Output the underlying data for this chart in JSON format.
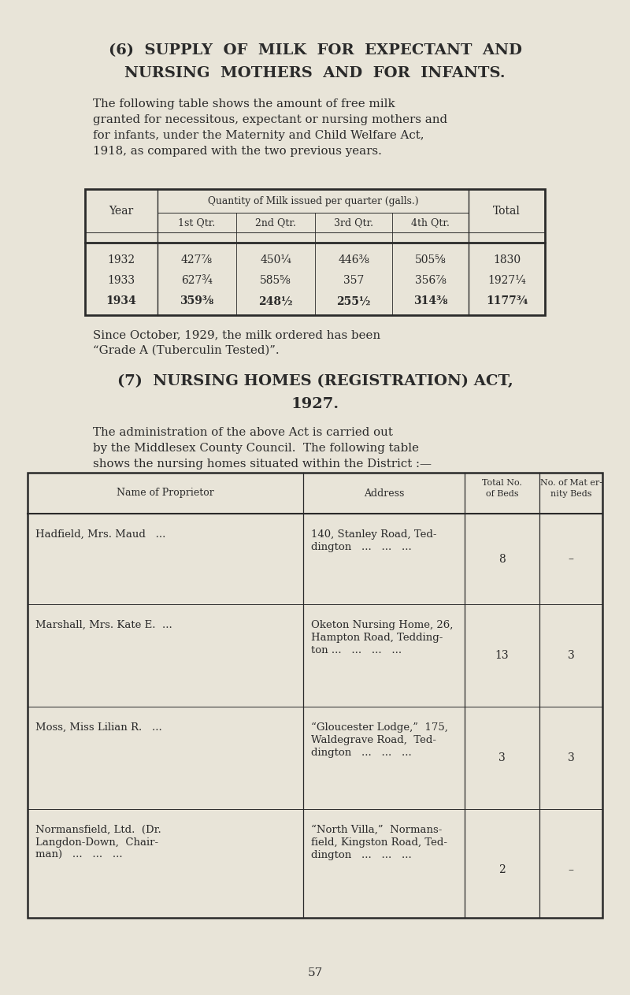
{
  "bg_color": "#e8e4d8",
  "text_color": "#2a2a2a",
  "page_number": "57",
  "section6_title_line1": "(6)  SUPPLY  OF  MILK  FOR  EXPECTANT  AND",
  "section6_title_line2": "NURSING  MOTHERS  AND  FOR  INFANTS.",
  "section6_para_lines": [
    "The following table shows the amount of free milk",
    "granted for necessitous, expectant or nursing mothers and",
    "for infants, under the Maternity and Child Welfare Act,",
    "1918, as compared with the two previous years."
  ],
  "table1_header_col2": "Quantity of Milk issued per quarter (galls.)",
  "table1_subheaders": [
    "1st Qtr.",
    "2nd Qtr.",
    "3rd Qtr.",
    "4th Qtr."
  ],
  "table1_rows": [
    [
      "1932",
      "427⅞",
      "450¼",
      "446⅜",
      "505⅝",
      "1830"
    ],
    [
      "1933",
      "627¾",
      "585⅝",
      "357",
      "356⅞",
      "1927¼"
    ],
    [
      "1934",
      "359⅜",
      "248½",
      "255½",
      "314⅜",
      "1177¾"
    ]
  ],
  "table1_bold_row": 2,
  "section6_note_lines": [
    "Since October, 1929, the milk ordered has been",
    "“Grade A (Tuberculin Tested)”."
  ],
  "section7_title_line1": "(7)  NURSING HOMES (REGISTRATION) ACT,",
  "section7_title_line2": "1927.",
  "section7_para_lines": [
    "The administration of the above Act is carried out",
    "by the Middlesex County Council.  The following table",
    "shows the nursing homes situated within the District :—"
  ],
  "table2_header_cols": [
    "Name of Proprietor",
    "Address",
    "Total No.\nof Beds",
    "No. of Mat er-\nnity Beds"
  ],
  "names": [
    [
      "Hadfield, Mrs. Maud   ..."
    ],
    [
      "Marshall, Mrs. Kate E.  ..."
    ],
    [
      "Moss, Miss Lilian R.   ..."
    ],
    [
      "Normansfield, Ltd.  (Dr.",
      "Langdon-Down,  Chair-",
      "man)   ...   ...   ..."
    ]
  ],
  "addresses": [
    [
      "140, Stanley Road, Ted-",
      "dington   ...   ...   ..."
    ],
    [
      "Oketon Nursing Home, 26,",
      "Hampton Road, Tedding-",
      "ton ...   ...   ...   ..."
    ],
    [
      "“Gloucester Lodge,”  175,",
      "Waldegrave Road,  Ted-",
      "dington   ...   ...   ..."
    ],
    [
      "“North Villa,”  Normans-",
      "field, Kingston Road, Ted-",
      "dington   ...   ...   ..."
    ]
  ],
  "total_beds": [
    "8",
    "13",
    "3",
    "2"
  ],
  "mat_beds": [
    "–",
    "3",
    "3",
    "–"
  ]
}
